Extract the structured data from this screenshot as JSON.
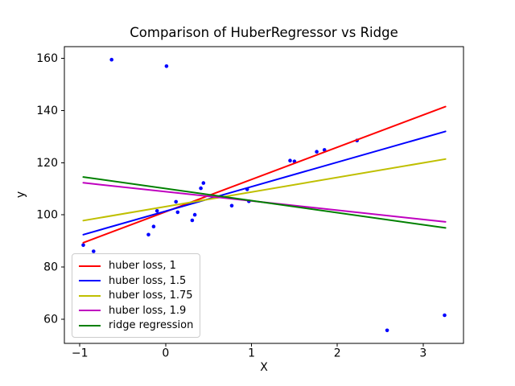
{
  "chart_data": {
    "type": "scatter",
    "title": "Comparison of HuberRegressor vs Ridge",
    "xlabel": "X",
    "ylabel": "y",
    "xlim": [
      -1.18,
      3.47
    ],
    "ylim": [
      50.7,
      164.5
    ],
    "x_ticks": [
      -1,
      0,
      1,
      2,
      3
    ],
    "x_tick_labels": [
      "−1",
      "0",
      "1",
      "2",
      "3"
    ],
    "y_ticks": [
      60,
      80,
      100,
      120,
      140,
      160
    ],
    "y_tick_labels": [
      "60",
      "80",
      "100",
      "120",
      "140",
      "160"
    ],
    "grid": false,
    "legend_position": "lower left",
    "scatter_color": "#0000ff",
    "scatter_points": [
      [
        -0.63,
        159.5
      ],
      [
        0.01,
        157.0
      ],
      [
        -0.96,
        88.4
      ],
      [
        -0.84,
        86.0
      ],
      [
        -0.2,
        92.4
      ],
      [
        -0.14,
        95.5
      ],
      [
        -0.1,
        101.5
      ],
      [
        0.12,
        105.0
      ],
      [
        0.14,
        101.0
      ],
      [
        0.31,
        97.9
      ],
      [
        0.34,
        100.0
      ],
      [
        0.41,
        110.2
      ],
      [
        0.44,
        112.2
      ],
      [
        0.77,
        103.5
      ],
      [
        0.95,
        109.8
      ],
      [
        0.97,
        105.2
      ],
      [
        1.45,
        120.8
      ],
      [
        1.5,
        120.5
      ],
      [
        1.76,
        124.2
      ],
      [
        1.85,
        124.9
      ],
      [
        2.23,
        128.5
      ],
      [
        2.58,
        55.7
      ],
      [
        3.25,
        61.5
      ]
    ],
    "series": [
      {
        "label": "huber loss, 1",
        "color": "#ff0000",
        "x": [
          -0.96,
          3.26
        ],
        "y": [
          89.3,
          141.5
        ]
      },
      {
        "label": "huber loss, 1.5",
        "color": "#0000ff",
        "x": [
          -0.96,
          3.26
        ],
        "y": [
          92.4,
          132.0
        ]
      },
      {
        "label": "huber loss, 1.75",
        "color": "#bfbf00",
        "x": [
          -0.96,
          3.26
        ],
        "y": [
          97.8,
          121.4
        ]
      },
      {
        "label": "huber loss, 1.9",
        "color": "#bf00bf",
        "x": [
          -0.96,
          3.26
        ],
        "y": [
          112.3,
          97.3
        ]
      },
      {
        "label": "ridge regression",
        "color": "#008000",
        "x": [
          -0.96,
          3.26
        ],
        "y": [
          114.5,
          95.0
        ]
      }
    ]
  }
}
